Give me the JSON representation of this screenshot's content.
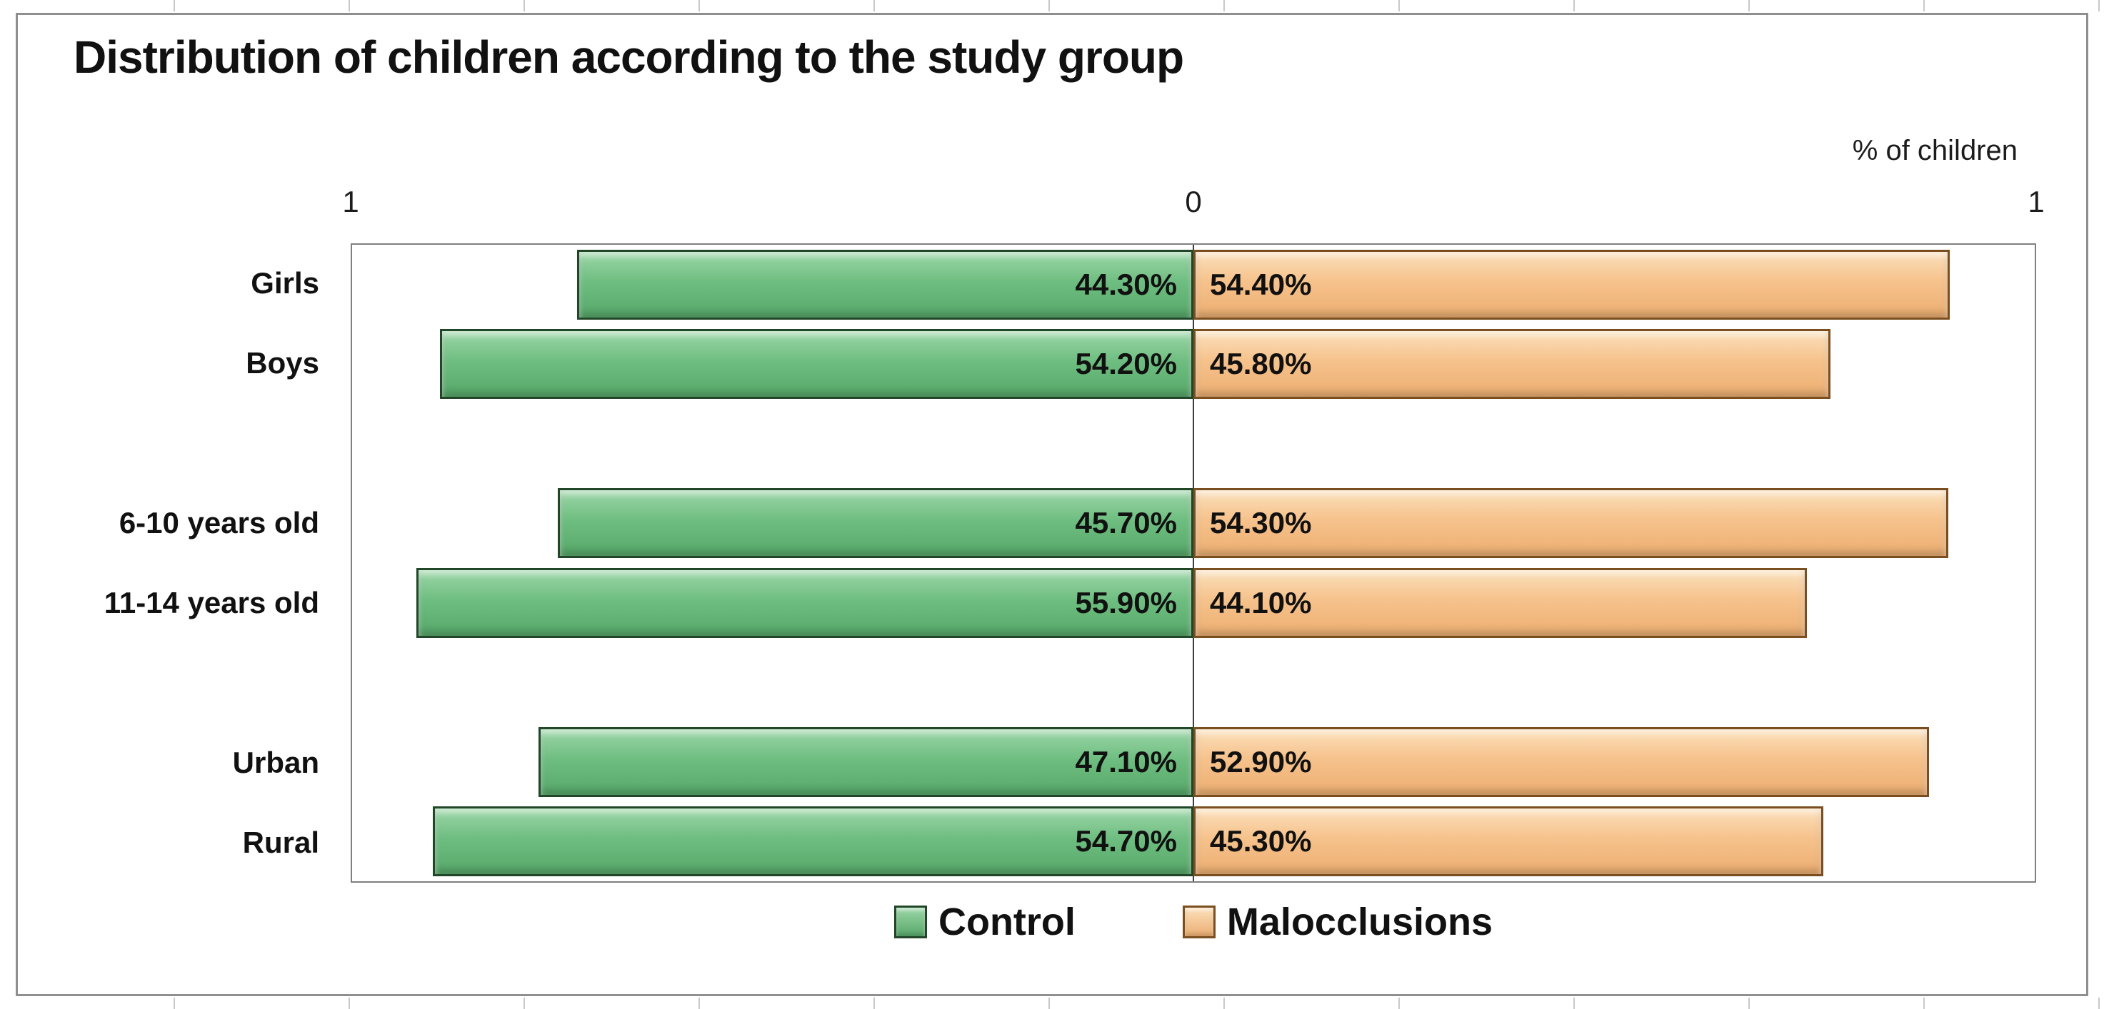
{
  "figure": {
    "title": "Distribution of children according to the study group",
    "axis_caption": "% of children",
    "ticks": {
      "left": "1",
      "center": "0",
      "right": "1"
    }
  },
  "chart_data": {
    "type": "bar",
    "variant": "diverging-horizontal",
    "title": "Distribution of children according to the study group",
    "xlabel": "% of children",
    "axis_tick_labels": [
      "1",
      "0",
      "1"
    ],
    "legend_position": "bottom",
    "grid": false,
    "visual_scale_max_percent": 60.5,
    "categories": [
      "Girls",
      "Boys",
      "6-10 years old",
      "11-14 years old",
      "Urban",
      "Rural"
    ],
    "series": [
      {
        "name": "Control",
        "side": "left",
        "fill": "#6FBE81",
        "fill_light": "#9CD6A8",
        "fill_dark": "#56A869",
        "border": "#214628",
        "values": [
          44.3,
          54.2,
          45.7,
          55.9,
          47.1,
          54.7
        ]
      },
      {
        "name": "Malocclusions",
        "side": "right",
        "fill": "#F6C28C",
        "fill_light": "#FBE0BC",
        "fill_dark": "#ECAE71",
        "border": "#7A4E1E",
        "values": [
          54.4,
          45.8,
          54.3,
          44.1,
          52.9,
          45.3
        ]
      }
    ],
    "rows": [
      {
        "label": "Girls",
        "control": 44.3,
        "control_text": "44.30%",
        "malocclusions": 54.4,
        "malocclusions_text": "54.40%"
      },
      {
        "label": "Boys",
        "control": 54.2,
        "control_text": "54.20%",
        "malocclusions": 45.8,
        "malocclusions_text": "45.80%"
      },
      {
        "label": "",
        "spacer": true
      },
      {
        "label": "6-10 years old",
        "control": 45.7,
        "control_text": "45.70%",
        "malocclusions": 54.3,
        "malocclusions_text": "54.30%"
      },
      {
        "label": "11-14 years old",
        "control": 55.9,
        "control_text": "55.90%",
        "malocclusions": 44.1,
        "malocclusions_text": "44.10%"
      },
      {
        "label": "",
        "spacer": true
      },
      {
        "label": "Urban",
        "control": 47.1,
        "control_text": "47.10%",
        "malocclusions": 52.9,
        "malocclusions_text": "52.90%"
      },
      {
        "label": "Rural",
        "control": 54.7,
        "control_text": "54.70%",
        "malocclusions": 45.3,
        "malocclusions_text": "45.30%"
      }
    ]
  }
}
